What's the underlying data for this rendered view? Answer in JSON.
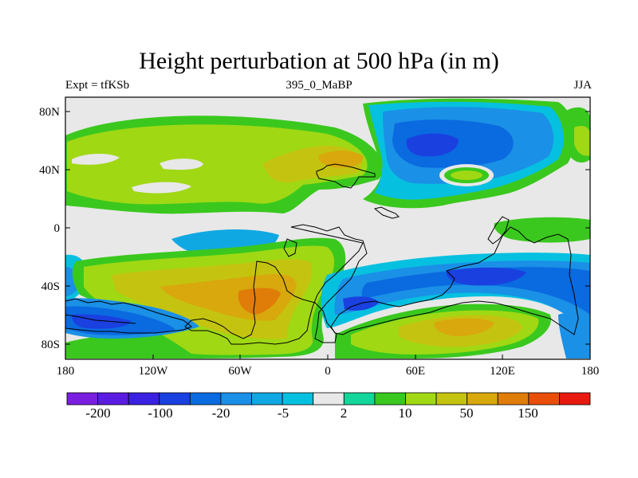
{
  "title": "Height perturbation at 500 hPa (in m)",
  "subtitle": {
    "left": "Expt = tfKSb",
    "center": "395_0_MaBP",
    "right": "JJA"
  },
  "map": {
    "type": "filled-contour",
    "projection": "cylindrical-equidistant",
    "lon_range": [
      -180,
      180
    ],
    "lat_range": [
      -90,
      90
    ]
  },
  "axes": {
    "y_ticks": [
      "80N",
      "40N",
      "0",
      "40S",
      "80S"
    ],
    "x_ticks": [
      "180",
      "120W",
      "60W",
      "0",
      "60E",
      "120E",
      "180"
    ]
  },
  "colorbar": {
    "colors": [
      "#7a1ee0",
      "#5a1ce2",
      "#3a20e0",
      "#1a40e0",
      "#0a6ae0",
      "#1a90e6",
      "#10a8e2",
      "#06c0e0",
      "#e8e8e8",
      "#14d69a",
      "#3ac81e",
      "#a0d814",
      "#c4c410",
      "#d8a80c",
      "#e07c08",
      "#e84e08",
      "#e81a10"
    ],
    "labels": [
      "-200",
      "-100",
      "-20",
      "-5",
      "2",
      "10",
      "50",
      "150"
    ]
  }
}
